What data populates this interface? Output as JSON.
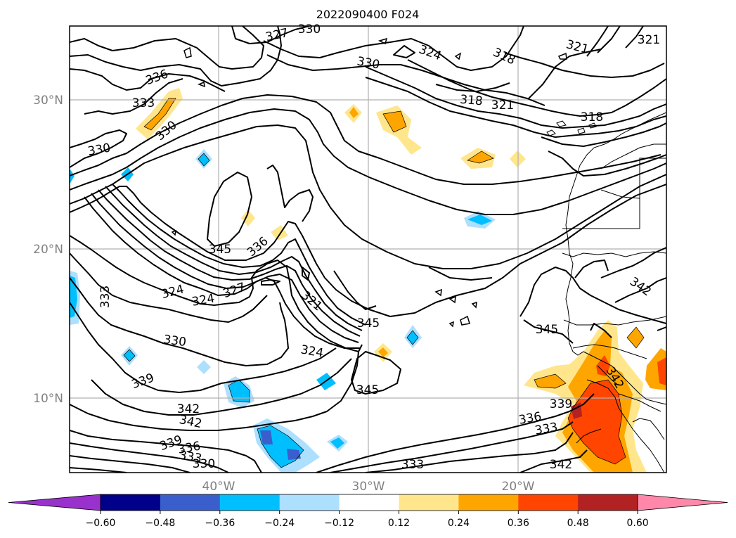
{
  "figure": {
    "title": "2022090400 F024"
  },
  "map": {
    "lat_labels": [
      "30°N",
      "20°N",
      "10°N"
    ],
    "lon_labels": [
      "40°W",
      "30°W",
      "20°W"
    ],
    "contour_labels": [
      "327",
      "330",
      "324",
      "318",
      "321",
      "321",
      "336",
      "333",
      "330",
      "330",
      "330",
      "318",
      "321",
      "318",
      "345",
      "336",
      "324",
      "324",
      "327",
      "321",
      "345",
      "333",
      "342",
      "345",
      "330",
      "324",
      "339",
      "342",
      "342",
      "345",
      "339",
      "336",
      "333",
      "330",
      "333",
      "339",
      "336",
      "333",
      "342",
      "342"
    ]
  },
  "colorbar": {
    "ticks": [
      "−0.60",
      "−0.48",
      "−0.36",
      "−0.24",
      "−0.12",
      "0.12",
      "0.24",
      "0.36",
      "0.48",
      "0.60"
    ],
    "colors": [
      "#9932cc",
      "#00008b",
      "#3a5fcd",
      "#00bfff",
      "#addfff",
      "#ffffff",
      "#ffe68c",
      "#ffa500",
      "#ff4500",
      "#b22222",
      "#ff88aa"
    ]
  }
}
